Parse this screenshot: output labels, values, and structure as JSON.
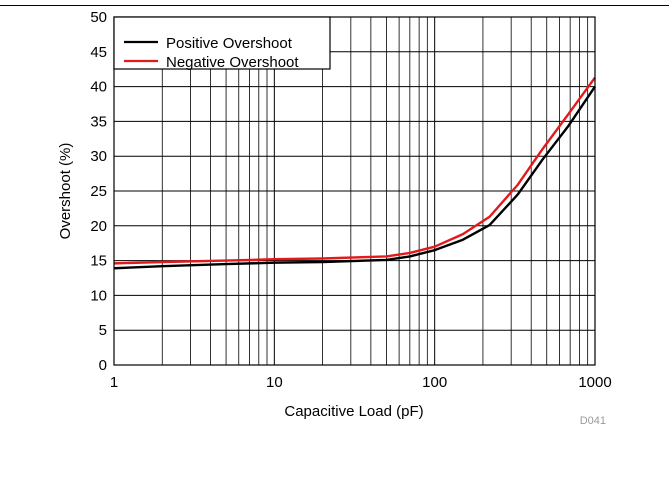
{
  "chart_data": {
    "type": "line",
    "xlabel": "Capacitive Load (pF)",
    "ylabel": "Overshoot (%)",
    "xscale": "log",
    "xlim": [
      1,
      1000
    ],
    "ylim": [
      0,
      50
    ],
    "grid": true,
    "legend_position": "top-left",
    "x_ticks": [
      1,
      10,
      100,
      1000
    ],
    "x_tick_labels": [
      "1",
      "10",
      "100",
      "1000"
    ],
    "y_ticks": [
      0,
      5,
      10,
      15,
      20,
      25,
      30,
      35,
      40,
      45,
      50
    ],
    "y_tick_labels": [
      "0",
      "5",
      "10",
      "15",
      "20",
      "25",
      "30",
      "35",
      "40",
      "45",
      "50"
    ],
    "figure_id": "D041",
    "series": [
      {
        "name": "Positive Overshoot",
        "color": "#000000",
        "x": [
          1,
          2,
          5,
          10,
          20,
          50,
          70,
          100,
          150,
          220,
          330,
          470,
          680,
          1000
        ],
        "y": [
          13.9,
          14.2,
          14.5,
          14.7,
          14.8,
          15.1,
          15.6,
          16.5,
          18.0,
          20.1,
          24.5,
          29.5,
          34.3,
          40.0
        ]
      },
      {
        "name": "Negative Overshoot",
        "color": "#e31a1c",
        "x": [
          1,
          2,
          5,
          10,
          20,
          50,
          70,
          100,
          150,
          220,
          330,
          470,
          680,
          1000
        ],
        "y": [
          14.6,
          14.8,
          15.0,
          15.2,
          15.3,
          15.6,
          16.1,
          17.0,
          18.8,
          21.3,
          25.9,
          31.0,
          36.0,
          41.3
        ]
      }
    ]
  }
}
